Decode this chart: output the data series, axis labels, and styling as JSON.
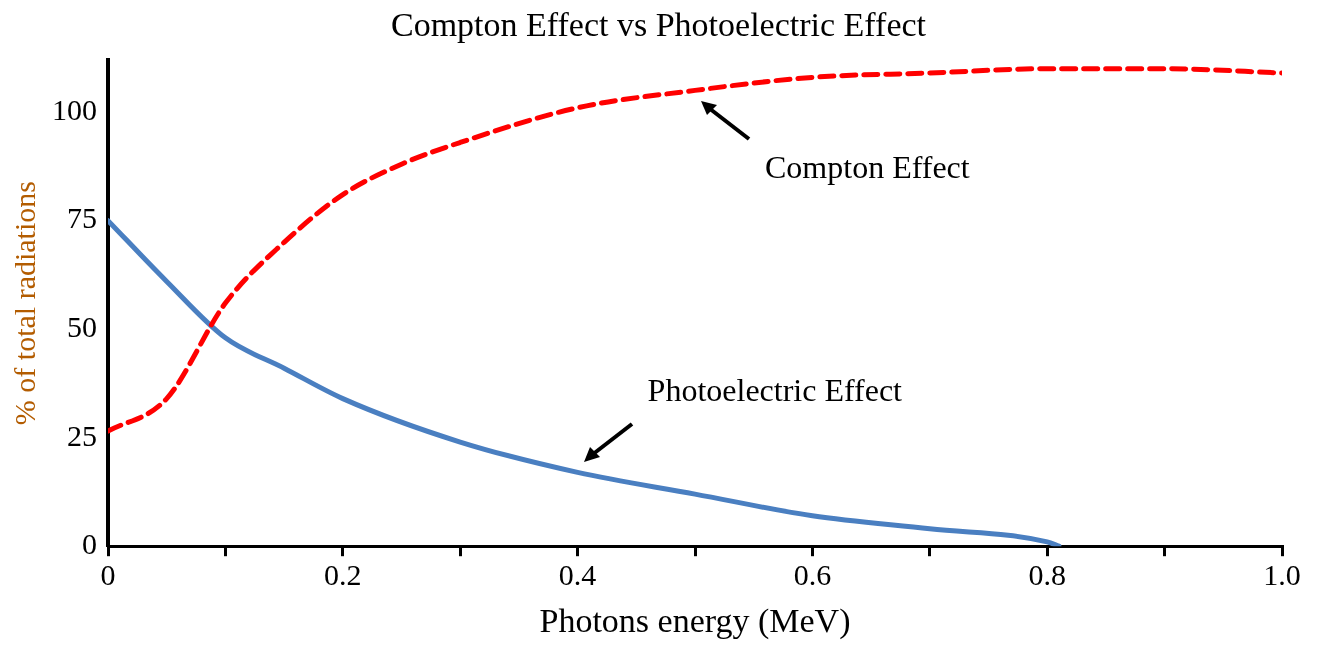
{
  "chart_data": {
    "type": "line",
    "title": "Compton Effect vs Photoelectric Effect",
    "xlabel": "Photons energy (MeV)",
    "ylabel": "% of total radiations",
    "xlim": [
      0,
      1.0
    ],
    "ylim": [
      0,
      112
    ],
    "xticks": [
      {
        "value": 0,
        "label": "0"
      },
      {
        "value": 0.1,
        "label": null
      },
      0.2,
      {
        "value": 0.3,
        "label": null
      },
      0.4,
      {
        "value": 0.5,
        "label": null
      },
      0.6,
      {
        "value": 0.7,
        "label": null
      },
      0.8,
      {
        "value": 0.9,
        "label": null
      },
      {
        "value": 1.0,
        "label": "1.0"
      }
    ],
    "yticks": [
      0,
      25,
      50,
      75,
      100
    ],
    "grid": false,
    "legend": false,
    "marker": "none",
    "series": [
      {
        "color": "#ff0000",
        "line_style": "dashed",
        "x": [
          0,
          0.05,
          0.1,
          0.15,
          0.2,
          0.25,
          0.3,
          0.4,
          0.5,
          0.6,
          0.7,
          0.8,
          0.9,
          1.0
        ],
        "values": [
          26.5,
          34,
          56,
          70,
          81,
          88,
          93,
          101,
          105,
          108,
          109,
          110,
          110,
          109
        ]
      },
      {
        "color": "#4a7fc1",
        "line_style": "solid",
        "x": [
          0,
          0.05,
          0.1,
          0.15,
          0.2,
          0.3,
          0.4,
          0.5,
          0.6,
          0.7,
          0.8,
          0.81
        ],
        "values": [
          75,
          61,
          48,
          41,
          34,
          24,
          17,
          12,
          7,
          4,
          1,
          0
        ]
      }
    ],
    "annotations": [
      {
        "text": "Compton Effect",
        "x": 0.5,
        "y": 104
      },
      {
        "text": "Photoelectric Effect",
        "x": 0.4,
        "y": 18
      }
    ]
  }
}
